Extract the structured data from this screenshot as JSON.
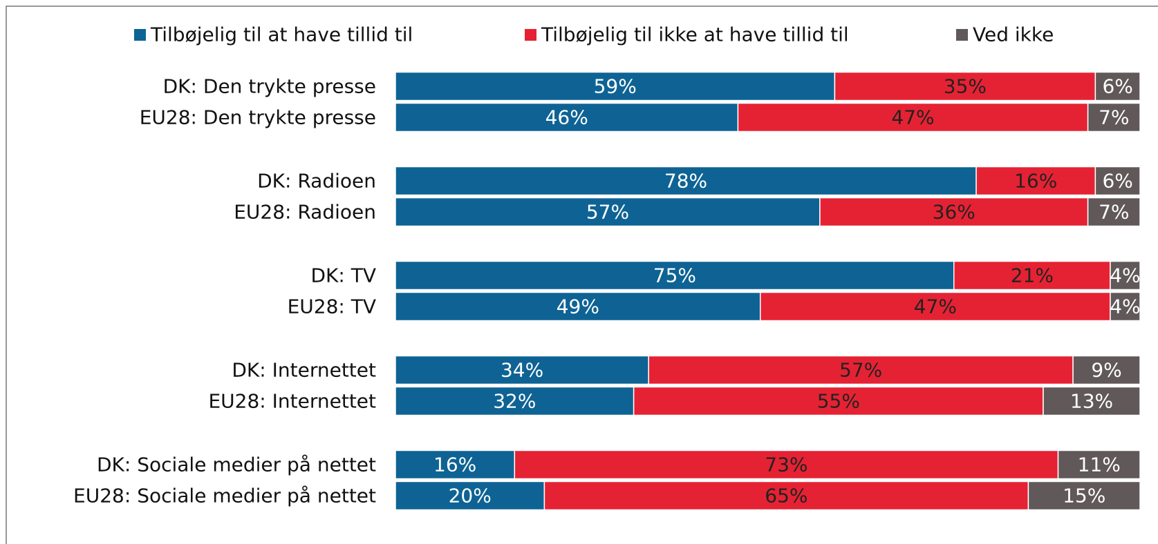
{
  "chart_data": {
    "type": "stacked_bar_horizontal",
    "categories": [
      "DK: Den trykte presse",
      "EU28: Den trykte presse",
      "DK: Radioen",
      "EU28: Radioen",
      "DK: TV",
      "EU28: TV",
      "DK: Internettet",
      "EU28: Internettet",
      "DK: Sociale medier på nettet",
      "EU28: Sociale medier på nettet"
    ],
    "series": [
      {
        "name": "Tilbøjelig til at have tillid til",
        "color": "#0e6394",
        "values": [
          59,
          46,
          78,
          57,
          75,
          49,
          34,
          32,
          16,
          20
        ],
        "value_labels": [
          "59%",
          "46%",
          "78%",
          "57%",
          "75%",
          "49%",
          "34%",
          "32%",
          "16%",
          "20%"
        ]
      },
      {
        "name": "Tilbøjelig til ikke at have tillid til",
        "color": "#e52233",
        "values": [
          35,
          47,
          16,
          36,
          21,
          47,
          57,
          55,
          73,
          65
        ],
        "value_labels": [
          "35%",
          "47%",
          "16%",
          "36%",
          "21%",
          "47%",
          "57%",
          "55%",
          "73%",
          "65%"
        ]
      },
      {
        "name": "Ved ikke",
        "color": "#605859",
        "values": [
          6,
          7,
          6,
          7,
          4,
          4,
          9,
          13,
          11,
          15
        ],
        "value_labels": [
          "6%",
          "7%",
          "6%",
          "7%",
          "4%",
          "4%",
          "9%",
          "13%",
          "11%",
          "15%"
        ]
      }
    ],
    "xlim": [
      0,
      100
    ],
    "legend": "top"
  }
}
